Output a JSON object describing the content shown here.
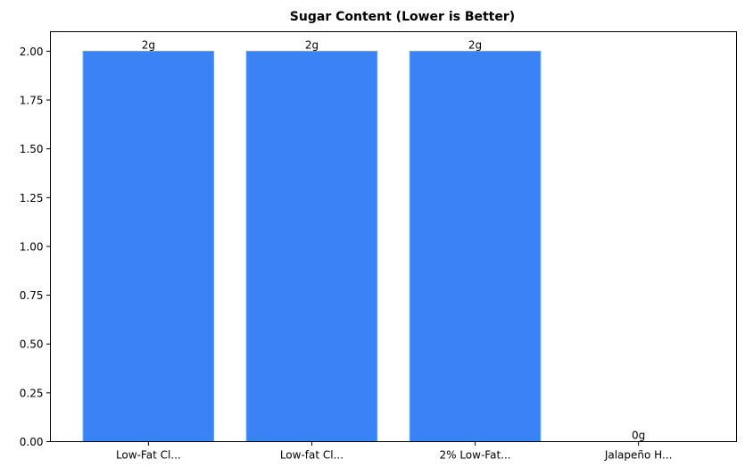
{
  "chart_data": {
    "type": "bar",
    "title": "Sugar Content (Lower is Better)",
    "xlabel": "",
    "ylabel": "",
    "categories": [
      "Low-Fat Cl...",
      "Low-fat Cl...",
      "2% Low-Fat...",
      "Jalapeño H..."
    ],
    "values": [
      2,
      2,
      2,
      0
    ],
    "data_labels": [
      "2g",
      "2g",
      "2g",
      "0g"
    ],
    "ylim": [
      0,
      2.1
    ],
    "yticks": [
      "0.00",
      "0.25",
      "0.50",
      "0.75",
      "1.00",
      "1.25",
      "1.50",
      "1.75",
      "2.00"
    ],
    "grid": false,
    "bar_color": "#3b82f6",
    "bar_edge_color": "#60a5fa"
  }
}
